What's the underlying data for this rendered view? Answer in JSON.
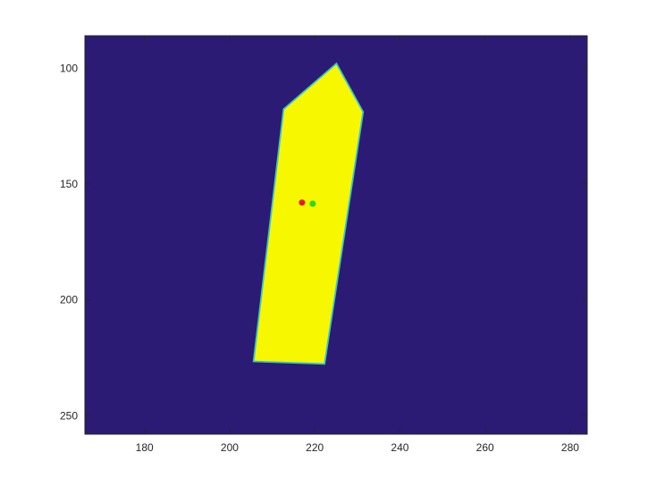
{
  "chart_data": {
    "type": "heatmap",
    "title": "",
    "xlabel": "",
    "ylabel": "",
    "xlim": [
      166,
      284
    ],
    "ylim": [
      258,
      86
    ],
    "y_axis_direction": "reversed",
    "x_ticks": [
      180,
      200,
      220,
      240,
      260,
      280
    ],
    "y_ticks": [
      100,
      150,
      200,
      250
    ],
    "grid": false,
    "colors": {
      "background": "#2b1b74",
      "region": "#f7f700",
      "edge_cyan": "#38c8c8",
      "marker_red": "#e61a1a",
      "marker_green": "#22dd22",
      "axis": "#262626"
    },
    "region_vertices": [
      {
        "x": 225,
        "y": 99
      },
      {
        "x": 231,
        "y": 119
      },
      {
        "x": 222,
        "y": 227
      },
      {
        "x": 206,
        "y": 226
      },
      {
        "x": 213,
        "y": 118
      }
    ],
    "points": [
      {
        "x": 217,
        "y": 158,
        "color": "red"
      },
      {
        "x": 219.5,
        "y": 158.5,
        "color": "green"
      }
    ]
  }
}
